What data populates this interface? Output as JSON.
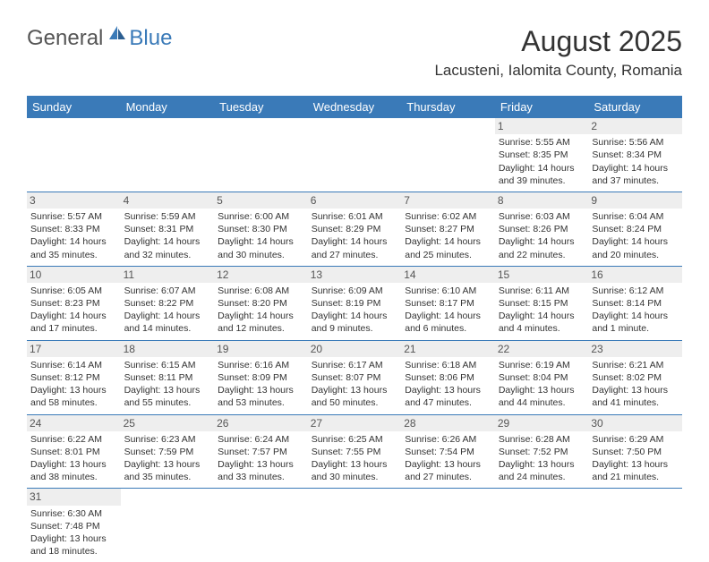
{
  "logo": {
    "general": "General",
    "blue": "Blue"
  },
  "title": "August 2025",
  "location": "Lacusteni, Ialomita County, Romania",
  "colors": {
    "header_bg": "#3a7ab8",
    "header_fg": "#ffffff",
    "daynum_bg": "#eeeeee",
    "text": "#333333",
    "rule": "#3a7ab8"
  },
  "typography": {
    "title_fontsize": 32,
    "location_fontsize": 17,
    "header_fontsize": 13,
    "cell_fontsize": 10.5
  },
  "weekdays": [
    "Sunday",
    "Monday",
    "Tuesday",
    "Wednesday",
    "Thursday",
    "Friday",
    "Saturday"
  ],
  "weeks": [
    [
      null,
      null,
      null,
      null,
      null,
      {
        "n": "1",
        "sr": "Sunrise: 5:55 AM",
        "ss": "Sunset: 8:35 PM",
        "d1": "Daylight: 14 hours",
        "d2": "and 39 minutes."
      },
      {
        "n": "2",
        "sr": "Sunrise: 5:56 AM",
        "ss": "Sunset: 8:34 PM",
        "d1": "Daylight: 14 hours",
        "d2": "and 37 minutes."
      }
    ],
    [
      {
        "n": "3",
        "sr": "Sunrise: 5:57 AM",
        "ss": "Sunset: 8:33 PM",
        "d1": "Daylight: 14 hours",
        "d2": "and 35 minutes."
      },
      {
        "n": "4",
        "sr": "Sunrise: 5:59 AM",
        "ss": "Sunset: 8:31 PM",
        "d1": "Daylight: 14 hours",
        "d2": "and 32 minutes."
      },
      {
        "n": "5",
        "sr": "Sunrise: 6:00 AM",
        "ss": "Sunset: 8:30 PM",
        "d1": "Daylight: 14 hours",
        "d2": "and 30 minutes."
      },
      {
        "n": "6",
        "sr": "Sunrise: 6:01 AM",
        "ss": "Sunset: 8:29 PM",
        "d1": "Daylight: 14 hours",
        "d2": "and 27 minutes."
      },
      {
        "n": "7",
        "sr": "Sunrise: 6:02 AM",
        "ss": "Sunset: 8:27 PM",
        "d1": "Daylight: 14 hours",
        "d2": "and 25 minutes."
      },
      {
        "n": "8",
        "sr": "Sunrise: 6:03 AM",
        "ss": "Sunset: 8:26 PM",
        "d1": "Daylight: 14 hours",
        "d2": "and 22 minutes."
      },
      {
        "n": "9",
        "sr": "Sunrise: 6:04 AM",
        "ss": "Sunset: 8:24 PM",
        "d1": "Daylight: 14 hours",
        "d2": "and 20 minutes."
      }
    ],
    [
      {
        "n": "10",
        "sr": "Sunrise: 6:05 AM",
        "ss": "Sunset: 8:23 PM",
        "d1": "Daylight: 14 hours",
        "d2": "and 17 minutes."
      },
      {
        "n": "11",
        "sr": "Sunrise: 6:07 AM",
        "ss": "Sunset: 8:22 PM",
        "d1": "Daylight: 14 hours",
        "d2": "and 14 minutes."
      },
      {
        "n": "12",
        "sr": "Sunrise: 6:08 AM",
        "ss": "Sunset: 8:20 PM",
        "d1": "Daylight: 14 hours",
        "d2": "and 12 minutes."
      },
      {
        "n": "13",
        "sr": "Sunrise: 6:09 AM",
        "ss": "Sunset: 8:19 PM",
        "d1": "Daylight: 14 hours",
        "d2": "and 9 minutes."
      },
      {
        "n": "14",
        "sr": "Sunrise: 6:10 AM",
        "ss": "Sunset: 8:17 PM",
        "d1": "Daylight: 14 hours",
        "d2": "and 6 minutes."
      },
      {
        "n": "15",
        "sr": "Sunrise: 6:11 AM",
        "ss": "Sunset: 8:15 PM",
        "d1": "Daylight: 14 hours",
        "d2": "and 4 minutes."
      },
      {
        "n": "16",
        "sr": "Sunrise: 6:12 AM",
        "ss": "Sunset: 8:14 PM",
        "d1": "Daylight: 14 hours",
        "d2": "and 1 minute."
      }
    ],
    [
      {
        "n": "17",
        "sr": "Sunrise: 6:14 AM",
        "ss": "Sunset: 8:12 PM",
        "d1": "Daylight: 13 hours",
        "d2": "and 58 minutes."
      },
      {
        "n": "18",
        "sr": "Sunrise: 6:15 AM",
        "ss": "Sunset: 8:11 PM",
        "d1": "Daylight: 13 hours",
        "d2": "and 55 minutes."
      },
      {
        "n": "19",
        "sr": "Sunrise: 6:16 AM",
        "ss": "Sunset: 8:09 PM",
        "d1": "Daylight: 13 hours",
        "d2": "and 53 minutes."
      },
      {
        "n": "20",
        "sr": "Sunrise: 6:17 AM",
        "ss": "Sunset: 8:07 PM",
        "d1": "Daylight: 13 hours",
        "d2": "and 50 minutes."
      },
      {
        "n": "21",
        "sr": "Sunrise: 6:18 AM",
        "ss": "Sunset: 8:06 PM",
        "d1": "Daylight: 13 hours",
        "d2": "and 47 minutes."
      },
      {
        "n": "22",
        "sr": "Sunrise: 6:19 AM",
        "ss": "Sunset: 8:04 PM",
        "d1": "Daylight: 13 hours",
        "d2": "and 44 minutes."
      },
      {
        "n": "23",
        "sr": "Sunrise: 6:21 AM",
        "ss": "Sunset: 8:02 PM",
        "d1": "Daylight: 13 hours",
        "d2": "and 41 minutes."
      }
    ],
    [
      {
        "n": "24",
        "sr": "Sunrise: 6:22 AM",
        "ss": "Sunset: 8:01 PM",
        "d1": "Daylight: 13 hours",
        "d2": "and 38 minutes."
      },
      {
        "n": "25",
        "sr": "Sunrise: 6:23 AM",
        "ss": "Sunset: 7:59 PM",
        "d1": "Daylight: 13 hours",
        "d2": "and 35 minutes."
      },
      {
        "n": "26",
        "sr": "Sunrise: 6:24 AM",
        "ss": "Sunset: 7:57 PM",
        "d1": "Daylight: 13 hours",
        "d2": "and 33 minutes."
      },
      {
        "n": "27",
        "sr": "Sunrise: 6:25 AM",
        "ss": "Sunset: 7:55 PM",
        "d1": "Daylight: 13 hours",
        "d2": "and 30 minutes."
      },
      {
        "n": "28",
        "sr": "Sunrise: 6:26 AM",
        "ss": "Sunset: 7:54 PM",
        "d1": "Daylight: 13 hours",
        "d2": "and 27 minutes."
      },
      {
        "n": "29",
        "sr": "Sunrise: 6:28 AM",
        "ss": "Sunset: 7:52 PM",
        "d1": "Daylight: 13 hours",
        "d2": "and 24 minutes."
      },
      {
        "n": "30",
        "sr": "Sunrise: 6:29 AM",
        "ss": "Sunset: 7:50 PM",
        "d1": "Daylight: 13 hours",
        "d2": "and 21 minutes."
      }
    ],
    [
      {
        "n": "31",
        "sr": "Sunrise: 6:30 AM",
        "ss": "Sunset: 7:48 PM",
        "d1": "Daylight: 13 hours",
        "d2": "and 18 minutes."
      },
      null,
      null,
      null,
      null,
      null,
      null
    ]
  ]
}
